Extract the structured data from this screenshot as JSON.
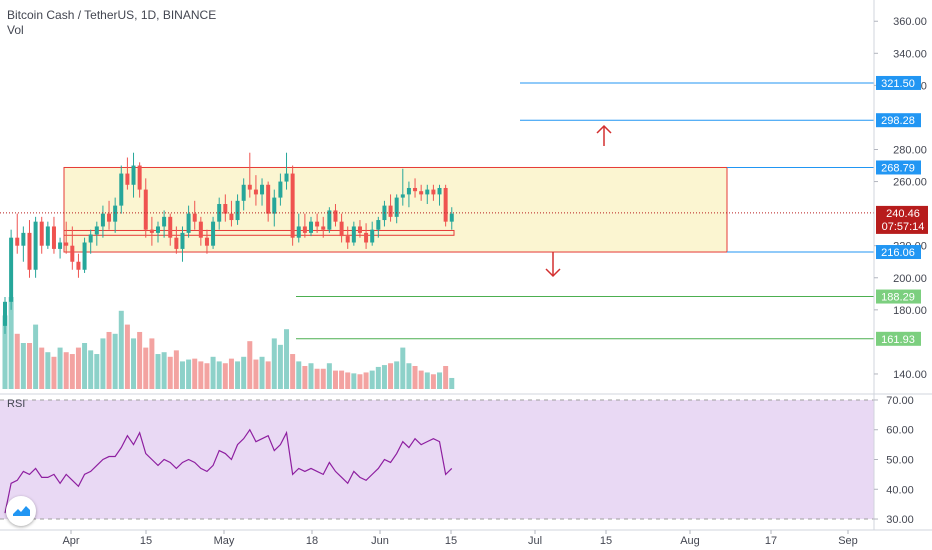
{
  "header": {
    "title": "Bitcoin Cash / TetherUS, 1D, BINANCE",
    "volume_label": "Vol"
  },
  "rsi": {
    "label": "RSI",
    "ticks": [
      "70.00",
      "60.00",
      "50.00",
      "40.00",
      "30.00"
    ],
    "range": [
      29,
      71
    ],
    "overbought": 70,
    "oversold": 30,
    "colors": {
      "line": "#8e1fa0",
      "background": "#e9d9f4"
    }
  },
  "price_axis": {
    "ticks": [
      "360.00",
      "340.00",
      "320.00",
      "280.00",
      "260.00",
      "220.00",
      "200.00",
      "180.00",
      "140.00"
    ],
    "range": [
      130,
      372
    ]
  },
  "time_axis": {
    "ticks": [
      "Apr",
      "15",
      "May",
      "15",
      "18",
      "Jun",
      "15",
      "Jul",
      "15",
      "Aug",
      "17",
      "Sep"
    ]
  },
  "levels": [
    {
      "label": "321.50",
      "value": 321.5,
      "kind": "resistance",
      "color": "#2196f3"
    },
    {
      "label": "298.28",
      "value": 298.28,
      "kind": "resistance",
      "color": "#2196f3"
    },
    {
      "label": "268.79",
      "value": 268.79,
      "kind": "range-top",
      "color": "#2196f3"
    },
    {
      "label": "216.06",
      "value": 216.06,
      "kind": "range-bottom",
      "color": "#2196f3"
    },
    {
      "label": "188.29",
      "value": 188.29,
      "kind": "support",
      "color": "#4caf50"
    },
    {
      "label": "161.93",
      "value": 161.93,
      "kind": "support",
      "color": "#4caf50"
    }
  ],
  "current_price": {
    "label": "240.46",
    "countdown": "07:57:14",
    "value": 240.46,
    "color": "#b71c1c"
  },
  "range_box": {
    "top": 268.79,
    "bottom": 216.06,
    "fill": "#fbf5d1",
    "border": "#e53935"
  },
  "colors": {
    "up": "#26a69a",
    "down": "#ef5350",
    "up_volume": "#8dd1c9",
    "down_volume": "#f3a3a1",
    "arrow": "#d32f2f"
  },
  "chart_data": {
    "type": "candlestick",
    "title": "Bitcoin Cash / TetherUS, 1D, BINANCE",
    "symbol": "BCH/USDT",
    "interval": "1D",
    "exchange": "BINANCE",
    "ohlc": [
      [
        170,
        188,
        165,
        185
      ],
      [
        185,
        230,
        180,
        225
      ],
      [
        225,
        240,
        215,
        220
      ],
      [
        220,
        232,
        210,
        228
      ],
      [
        228,
        236,
        200,
        205
      ],
      [
        205,
        238,
        200,
        235
      ],
      [
        235,
        238,
        215,
        220
      ],
      [
        220,
        235,
        218,
        232
      ],
      [
        232,
        238,
        215,
        218
      ],
      [
        218,
        225,
        212,
        222
      ],
      [
        222,
        235,
        215,
        220
      ],
      [
        220,
        232,
        205,
        210
      ],
      [
        210,
        215,
        200,
        205
      ],
      [
        205,
        225,
        203,
        222
      ],
      [
        222,
        230,
        215,
        227
      ],
      [
        227,
        235,
        220,
        232
      ],
      [
        232,
        245,
        225,
        240
      ],
      [
        240,
        248,
        230,
        235
      ],
      [
        235,
        250,
        228,
        245
      ],
      [
        245,
        270,
        240,
        265
      ],
      [
        265,
        275,
        255,
        258
      ],
      [
        258,
        278,
        250,
        270
      ],
      [
        270,
        272,
        250,
        255
      ],
      [
        255,
        262,
        225,
        230
      ],
      [
        230,
        238,
        220,
        228
      ],
      [
        228,
        235,
        222,
        232
      ],
      [
        232,
        242,
        225,
        238
      ],
      [
        238,
        240,
        220,
        225
      ],
      [
        225,
        232,
        215,
        218
      ],
      [
        218,
        232,
        210,
        228
      ],
      [
        228,
        245,
        225,
        240
      ],
      [
        240,
        248,
        230,
        235
      ],
      [
        235,
        238,
        220,
        225
      ],
      [
        225,
        230,
        215,
        220
      ],
      [
        220,
        238,
        218,
        235
      ],
      [
        235,
        250,
        230,
        246
      ],
      [
        246,
        252,
        235,
        240
      ],
      [
        240,
        248,
        232,
        236
      ],
      [
        236,
        252,
        233,
        248
      ],
      [
        248,
        262,
        242,
        258
      ],
      [
        258,
        278,
        250,
        255
      ],
      [
        255,
        264,
        245,
        252
      ],
      [
        252,
        262,
        245,
        258
      ],
      [
        258,
        260,
        235,
        240
      ],
      [
        240,
        255,
        232,
        250
      ],
      [
        250,
        265,
        245,
        260
      ],
      [
        260,
        278,
        255,
        265
      ],
      [
        265,
        270,
        220,
        225
      ],
      [
        225,
        240,
        222,
        232
      ],
      [
        232,
        240,
        225,
        228
      ],
      [
        228,
        238,
        226,
        235
      ],
      [
        235,
        240,
        228,
        232
      ],
      [
        232,
        238,
        225,
        230
      ],
      [
        230,
        244,
        228,
        242
      ],
      [
        242,
        246,
        232,
        235
      ],
      [
        235,
        240,
        222,
        226
      ],
      [
        226,
        232,
        218,
        222
      ],
      [
        222,
        235,
        220,
        232
      ],
      [
        232,
        236,
        225,
        228
      ],
      [
        228,
        234,
        218,
        222
      ],
      [
        222,
        235,
        220,
        230
      ],
      [
        230,
        238,
        225,
        236
      ],
      [
        236,
        248,
        232,
        245
      ],
      [
        245,
        252,
        235,
        238
      ],
      [
        238,
        252,
        234,
        250
      ],
      [
        250,
        268,
        245,
        252
      ],
      [
        252,
        260,
        244,
        256
      ],
      [
        256,
        262,
        250,
        254
      ],
      [
        254,
        258,
        248,
        252
      ],
      [
        252,
        258,
        246,
        255
      ],
      [
        255,
        258,
        248,
        252
      ],
      [
        252,
        258,
        245,
        256
      ],
      [
        256,
        258,
        232,
        235
      ],
      [
        235,
        244,
        230,
        240
      ]
    ],
    "volume_relative": [
      0.8,
      1.0,
      0.6,
      0.5,
      0.5,
      0.7,
      0.45,
      0.4,
      0.35,
      0.45,
      0.4,
      0.38,
      0.45,
      0.5,
      0.42,
      0.38,
      0.55,
      0.62,
      0.6,
      0.85,
      0.7,
      0.55,
      0.62,
      0.45,
      0.55,
      0.38,
      0.4,
      0.35,
      0.42,
      0.3,
      0.32,
      0.33,
      0.3,
      0.28,
      0.35,
      0.3,
      0.28,
      0.33,
      0.3,
      0.35,
      0.52,
      0.32,
      0.35,
      0.3,
      0.55,
      0.48,
      0.65,
      0.38,
      0.3,
      0.25,
      0.28,
      0.22,
      0.22,
      0.28,
      0.2,
      0.2,
      0.18,
      0.17,
      0.16,
      0.18,
      0.2,
      0.24,
      0.26,
      0.28,
      0.3,
      0.45,
      0.28,
      0.25,
      0.2,
      0.18,
      0.16,
      0.18,
      0.25,
      0.12
    ],
    "rsi_values": [
      32,
      42,
      43,
      46,
      45,
      47,
      44,
      44,
      45,
      42,
      45,
      43,
      41,
      45,
      46,
      48,
      50,
      51,
      51,
      54,
      58,
      55,
      59,
      52,
      50,
      48,
      50,
      49,
      47,
      49,
      50,
      49,
      47,
      46,
      48,
      53,
      52,
      50,
      55,
      57,
      60,
      56,
      57,
      58,
      53,
      55,
      59,
      45,
      47,
      46,
      47,
      46,
      45,
      49,
      46,
      44,
      42,
      46,
      44,
      43,
      45,
      47,
      50,
      49,
      52,
      56,
      54,
      57,
      55,
      56,
      57,
      56,
      45,
      47
    ],
    "rsi_range": [
      30,
      70
    ]
  }
}
